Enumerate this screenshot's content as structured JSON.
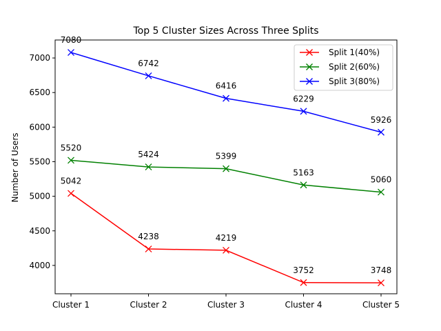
{
  "chart_data": {
    "type": "line",
    "title": "Top 5 Cluster Sizes Across Three Splits",
    "xlabel": "",
    "ylabel": "Number of Users",
    "categories": [
      "Cluster 1",
      "Cluster 2",
      "Cluster 3",
      "Cluster 4",
      "Cluster 5"
    ],
    "ylim": [
      3590,
      7260
    ],
    "yticks": [
      4000,
      4500,
      5000,
      5500,
      6000,
      6500,
      7000
    ],
    "marker": "x",
    "grid": false,
    "legend_position": "top-right",
    "series": [
      {
        "name": "Split 1(40%)",
        "color": "#ff0000",
        "values": [
          5042,
          4238,
          4219,
          3752,
          3748
        ]
      },
      {
        "name": "Split 2(60%)",
        "color": "#008000",
        "values": [
          5520,
          5424,
          5399,
          5163,
          5060
        ]
      },
      {
        "name": "Split 3(80%)",
        "color": "#0000ff",
        "values": [
          7080,
          6742,
          6416,
          6229,
          5926
        ]
      }
    ]
  }
}
